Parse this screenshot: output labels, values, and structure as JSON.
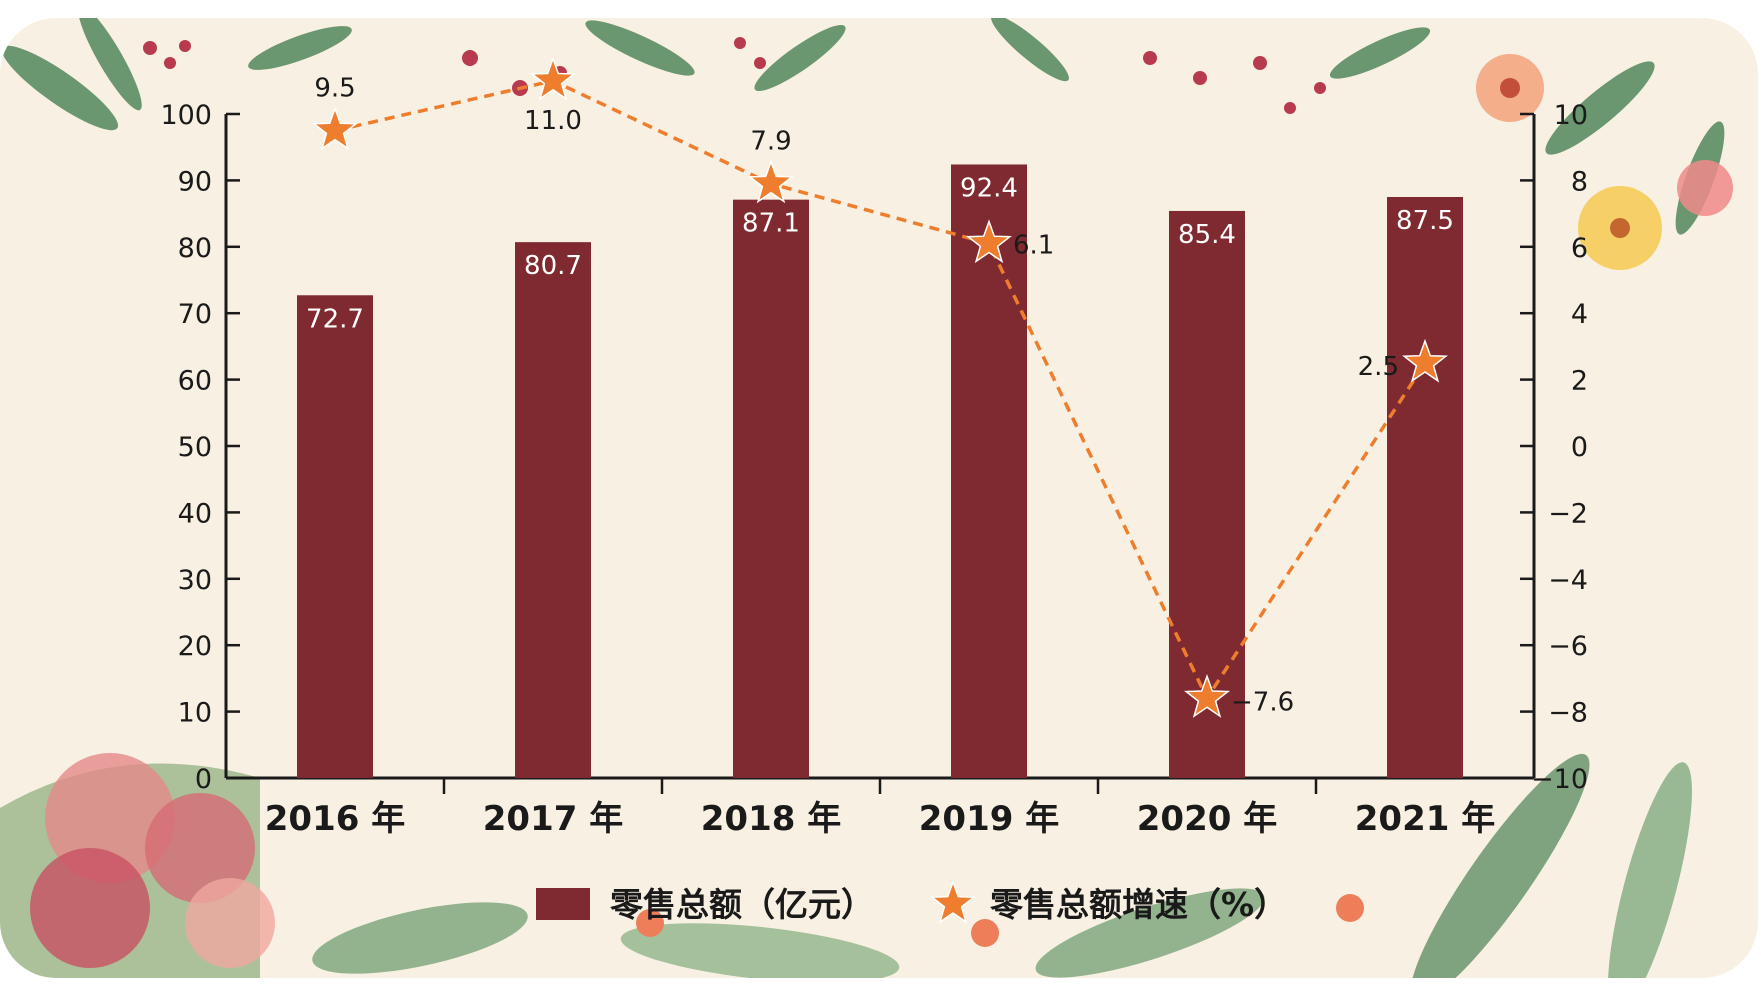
{
  "chart_data": {
    "type": "bar",
    "categories": [
      "2016 年",
      "2017 年",
      "2018 年",
      "2019 年",
      "2020 年",
      "2021 年"
    ],
    "series": [
      {
        "name": "零售总额（亿元）",
        "type": "bar",
        "axis": "left",
        "values": [
          72.7,
          80.7,
          87.1,
          92.4,
          85.4,
          87.5
        ],
        "labels": [
          "72.7",
          "80.7",
          "87.1",
          "92.4",
          "85.4",
          "87.5"
        ],
        "color": "#7f2931"
      },
      {
        "name": "零售总额增速（%）",
        "type": "line",
        "axis": "right",
        "values": [
          9.5,
          11.0,
          7.9,
          6.1,
          -7.6,
          2.5
        ],
        "labels": [
          "9.5",
          "11.0",
          "7.9",
          "6.1",
          "−7.6",
          "2.5"
        ],
        "color": "#ee7e2d",
        "line_style": "dashed",
        "marker": "star"
      }
    ],
    "y_left": {
      "lim": [
        0,
        100
      ],
      "ticks": [
        0,
        10,
        20,
        30,
        40,
        50,
        60,
        70,
        80,
        90,
        100
      ],
      "tick_labels": [
        "0",
        "10",
        "20",
        "30",
        "40",
        "50",
        "60",
        "70",
        "80",
        "90",
        "100"
      ]
    },
    "y_right": {
      "lim": [
        -10,
        10
      ],
      "ticks": [
        -10,
        -8,
        -6,
        -4,
        -2,
        0,
        2,
        4,
        6,
        8,
        10
      ],
      "tick_labels": [
        "−10",
        "−8",
        "−6",
        "−4",
        "−2",
        "0",
        "2",
        "4",
        "6",
        "8",
        "10"
      ]
    },
    "title": "",
    "xlabel": "",
    "ylabel": "",
    "grid": false,
    "legend": "bottom-center",
    "background": "#f8f0e2"
  }
}
